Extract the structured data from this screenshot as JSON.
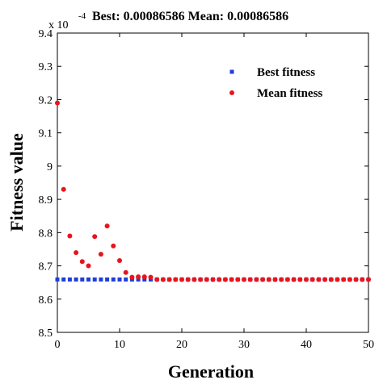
{
  "chart_data": {
    "type": "scatter",
    "title": "Best: 0.00086586 Mean: 0.00086586",
    "exponent_base": "x 10",
    "exponent_power": "-4",
    "xlabel": "Generation",
    "ylabel": "Fitness value",
    "xlim": [
      0,
      50
    ],
    "ylim": [
      8.5,
      9.4
    ],
    "x_ticks": [
      0,
      10,
      20,
      30,
      40,
      50
    ],
    "x_tick_labels": [
      "0",
      "10",
      "20",
      "30",
      "40",
      "50"
    ],
    "y_ticks": [
      8.5,
      8.6,
      8.7,
      8.8,
      8.9,
      9.0,
      9.1,
      9.2,
      9.3,
      9.4
    ],
    "y_tick_labels": [
      "8.5",
      "8.6",
      "8.7",
      "8.8",
      "8.9",
      "9",
      "9.1",
      "9.2",
      "9.3",
      "9.4"
    ],
    "grid": false,
    "legend_position": "top-right",
    "series": [
      {
        "name": "Best fitness",
        "marker": "square",
        "color": "#1f3fd6",
        "x": [
          0,
          1,
          2,
          3,
          4,
          5,
          6,
          7,
          8,
          9,
          10,
          11,
          12,
          13,
          14,
          15,
          16,
          17,
          18,
          19,
          20,
          21,
          22,
          23,
          24,
          25,
          26,
          27,
          28,
          29,
          30,
          31,
          32,
          33,
          34,
          35,
          36,
          37,
          38,
          39,
          40,
          41,
          42,
          43,
          44,
          45,
          46,
          47,
          48,
          49,
          50
        ],
        "y": [
          8.659,
          8.659,
          8.659,
          8.659,
          8.659,
          8.659,
          8.659,
          8.659,
          8.659,
          8.659,
          8.659,
          8.659,
          8.659,
          8.659,
          8.659,
          8.659,
          8.659,
          8.659,
          8.659,
          8.659,
          8.659,
          8.659,
          8.659,
          8.659,
          8.659,
          8.659,
          8.659,
          8.659,
          8.659,
          8.659,
          8.659,
          8.659,
          8.659,
          8.659,
          8.659,
          8.659,
          8.659,
          8.659,
          8.659,
          8.659,
          8.659,
          8.659,
          8.659,
          8.659,
          8.659,
          8.659,
          8.659,
          8.659,
          8.659,
          8.659,
          8.659
        ]
      },
      {
        "name": "Mean fitness",
        "marker": "circle",
        "color": "#e8141c",
        "x": [
          0,
          1,
          2,
          3,
          4,
          5,
          6,
          7,
          8,
          9,
          10,
          11,
          12,
          13,
          14,
          15,
          16,
          17,
          18,
          19,
          20,
          21,
          22,
          23,
          24,
          25,
          26,
          27,
          28,
          29,
          30,
          31,
          32,
          33,
          34,
          35,
          36,
          37,
          38,
          39,
          40,
          41,
          42,
          43,
          44,
          45,
          46,
          47,
          48,
          49,
          50
        ],
        "y": [
          9.19,
          8.93,
          8.79,
          8.74,
          8.713,
          8.7,
          8.788,
          8.735,
          8.82,
          8.76,
          8.716,
          8.68,
          8.666,
          8.667,
          8.667,
          8.666,
          8.659,
          8.659,
          8.659,
          8.659,
          8.659,
          8.659,
          8.659,
          8.659,
          8.659,
          8.659,
          8.659,
          8.659,
          8.659,
          8.659,
          8.659,
          8.659,
          8.659,
          8.659,
          8.659,
          8.659,
          8.659,
          8.659,
          8.659,
          8.659,
          8.659,
          8.659,
          8.659,
          8.659,
          8.659,
          8.659,
          8.659,
          8.659,
          8.659,
          8.659,
          8.659
        ]
      }
    ]
  }
}
